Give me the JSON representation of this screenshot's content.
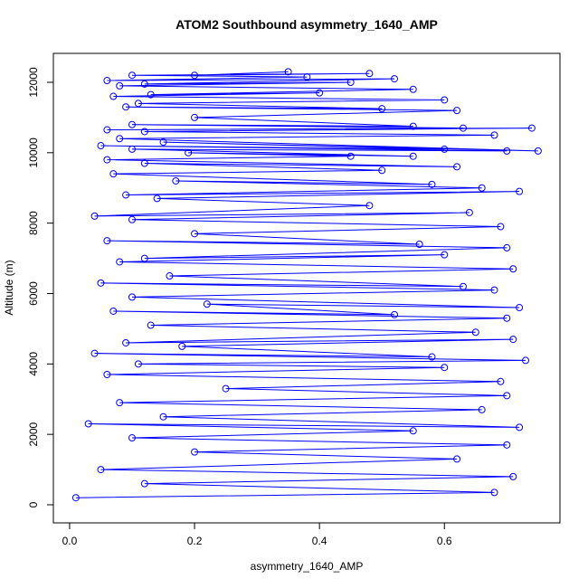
{
  "chart_data": {
    "type": "line",
    "markers": "circle-open",
    "title": "ATOM2 Southbound asymmetry_1640_AMP",
    "xlabel": "asymmetry_1640_AMP",
    "ylabel": "Altitude (m)",
    "series": [
      {
        "color": "#0000ff",
        "x": [
          0.01,
          0.68,
          0.12,
          0.71,
          0.05,
          0.62,
          0.2,
          0.7,
          0.1,
          0.55,
          0.03,
          0.72,
          0.15,
          0.66,
          0.08,
          0.7,
          0.25,
          0.69,
          0.06,
          0.6,
          0.11,
          0.73,
          0.04,
          0.58,
          0.18,
          0.71,
          0.09,
          0.65,
          0.13,
          0.7,
          0.07,
          0.52,
          0.22,
          0.72,
          0.1,
          0.68,
          0.05,
          0.63,
          0.16,
          0.71,
          0.08,
          0.6,
          0.12,
          0.7,
          0.06,
          0.56,
          0.2,
          0.69,
          0.1,
          0.64,
          0.04,
          0.48,
          0.14,
          0.72,
          0.09,
          0.66,
          0.17,
          0.58,
          0.07,
          0.5,
          0.12,
          0.62,
          0.06,
          0.45,
          0.19,
          0.55,
          0.1,
          0.7,
          0.05,
          0.6,
          0.15,
          0.75,
          0.08,
          0.68,
          0.12,
          0.74,
          0.06,
          0.63,
          0.1,
          0.55,
          0.2,
          0.62,
          0.09,
          0.5,
          0.11,
          0.6,
          0.07,
          0.4,
          0.13,
          0.55,
          0.08,
          0.45,
          0.12,
          0.52,
          0.06,
          0.38,
          0.1,
          0.48,
          0.2,
          0.35
        ],
        "values": [
          200,
          350,
          600,
          800,
          1000,
          1300,
          1500,
          1700,
          1900,
          2100,
          2300,
          2200,
          2500,
          2700,
          2900,
          3100,
          3300,
          3500,
          3700,
          3900,
          4000,
          4100,
          4300,
          4200,
          4500,
          4700,
          4600,
          4900,
          5100,
          5300,
          5500,
          5400,
          5700,
          5600,
          5900,
          6100,
          6300,
          6200,
          6500,
          6700,
          6900,
          7100,
          7000,
          7300,
          7500,
          7400,
          7700,
          7900,
          8100,
          8300,
          8200,
          8500,
          8700,
          8900,
          8800,
          9000,
          9200,
          9100,
          9400,
          9500,
          9700,
          9600,
          9800,
          9900,
          10000,
          9900,
          10100,
          10050,
          10200,
          10100,
          10300,
          10050,
          10400,
          10500,
          10600,
          10700,
          10650,
          10700,
          10800,
          10750,
          11000,
          11200,
          11300,
          11250,
          11400,
          11500,
          11600,
          11700,
          11650,
          11800,
          11900,
          12000,
          11950,
          12100,
          12050,
          12150,
          12200,
          12250,
          12200,
          12300
        ]
      }
    ],
    "xlim": [
      -0.026,
      0.785
    ],
    "xticks": [
      {
        "value": 0,
        "label": "0.0"
      },
      0.2,
      0.4,
      0.6
    ],
    "ylim": [
      -514,
      12822
    ],
    "yticks": [
      0,
      2000,
      4000,
      6000,
      8000,
      10000,
      12000
    ],
    "grid": false
  }
}
